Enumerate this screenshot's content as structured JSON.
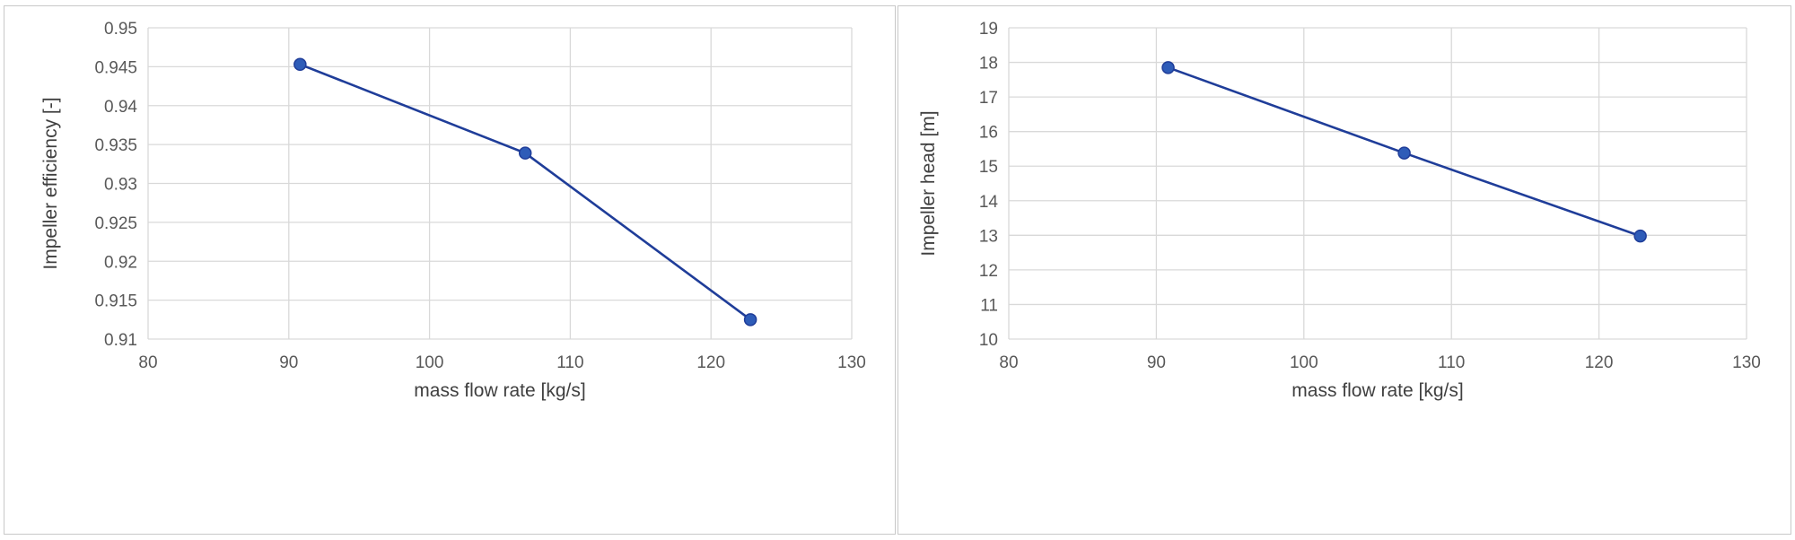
{
  "chart_data": [
    {
      "type": "line",
      "title": "",
      "xlabel": "mass flow rate [kg/s]",
      "ylabel": "Impeller efficiency [-]",
      "xlim": [
        80,
        130
      ],
      "ylim": [
        0.91,
        0.95
      ],
      "xticks": [
        "80",
        "90",
        "100",
        "110",
        "120",
        "130"
      ],
      "yticks": [
        "0.91",
        "0.915",
        "0.92",
        "0.925",
        "0.93",
        "0.935",
        "0.94",
        "0.945",
        "0.95"
      ],
      "grid": true,
      "legend": "none",
      "series": [
        {
          "color": "#1f3d99",
          "marker_color": "#2e5cb8",
          "x": [
            90.8,
            106.8,
            122.8
          ],
          "y": [
            0.9453,
            0.9339,
            0.9125
          ]
        }
      ]
    },
    {
      "type": "line",
      "title": "",
      "xlabel": "mass flow rate [kg/s]",
      "ylabel": "Impeller head [m]",
      "xlim": [
        80,
        130
      ],
      "ylim": [
        10,
        19
      ],
      "xticks": [
        "80",
        "90",
        "100",
        "110",
        "120",
        "130"
      ],
      "yticks": [
        "10",
        "11",
        "12",
        "13",
        "14",
        "15",
        "16",
        "17",
        "18",
        "19"
      ],
      "grid": true,
      "legend": "none",
      "series": [
        {
          "color": "#1f3d99",
          "marker_color": "#2e5cb8",
          "x": [
            90.8,
            106.8,
            122.8
          ],
          "y": [
            17.85,
            15.38,
            12.98
          ]
        }
      ]
    }
  ]
}
